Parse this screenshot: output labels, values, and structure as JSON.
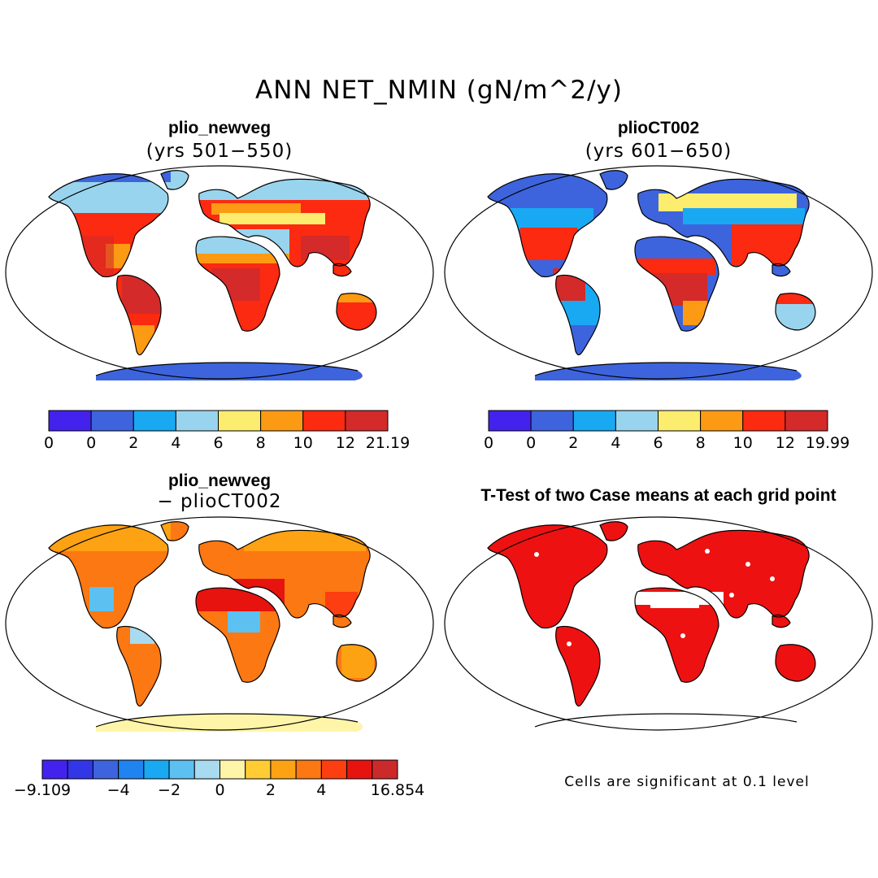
{
  "figure": {
    "title": "ANN NET_NMIN (gN/m^2/y)"
  },
  "panels": [
    {
      "id": "top-left",
      "title": "plio_newveg",
      "subtitle": "(yrs 501−550)",
      "colorbar": {
        "colors": [
          "#4422ee",
          "#3d64dd",
          "#19a9f2",
          "#99d4ee",
          "#fced6e",
          "#fd9a13",
          "#fc2a10",
          "#d42a2a"
        ],
        "tick_labels": [
          "0",
          "0",
          "2",
          "4",
          "6",
          "8",
          "10",
          "12",
          "21.19"
        ]
      }
    },
    {
      "id": "top-right",
      "title": "plioCT002",
      "subtitle": "(yrs 601−650)",
      "colorbar": {
        "colors": [
          "#4422ee",
          "#3d64dd",
          "#19a9f2",
          "#99d4ee",
          "#fced6e",
          "#fd9a13",
          "#fc2a10",
          "#d42a2a"
        ],
        "tick_labels": [
          "0",
          "0",
          "2",
          "4",
          "6",
          "8",
          "10",
          "12",
          "19.99"
        ]
      }
    },
    {
      "id": "bottom-left",
      "title": "plio_newveg",
      "subtitle": "− plioCT002",
      "colorbar": {
        "colors": [
          "#4422ee",
          "#3136e6",
          "#3d64dd",
          "#1f83f0",
          "#19a9f2",
          "#5cc0f0",
          "#a8daf0",
          "#fff5a8",
          "#ffcc33",
          "#fda213",
          "#fc7812",
          "#fc3e10",
          "#e6130f",
          "#cc2a2a"
        ],
        "tick_labels": [
          "−9.109",
          "−4",
          "−2",
          "0",
          "2",
          "4",
          "16.854"
        ]
      }
    },
    {
      "id": "bottom-right",
      "title": "T-Test of two Case means at each grid point",
      "note": "Cells are significant at 0.1 level"
    }
  ]
}
